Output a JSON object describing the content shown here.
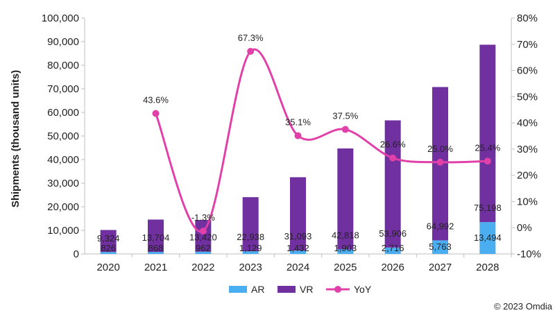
{
  "chart_data": {
    "type": "bar",
    "subtype": "stacked bar with line on secondary axis",
    "categories": [
      "2020",
      "2021",
      "2022",
      "2023",
      "2024",
      "2025",
      "2026",
      "2027",
      "2028"
    ],
    "series": [
      {
        "name": "AR",
        "type": "bar",
        "axis": "left",
        "color": "#4AAEF0",
        "values": [
          826,
          868,
          962,
          1129,
          1432,
          1903,
          2716,
          5763,
          13494
        ],
        "labels": [
          "826",
          "868",
          "962",
          "1,129",
          "1,432",
          "1,903",
          "2,716",
          "5,763",
          "13,494"
        ]
      },
      {
        "name": "VR",
        "type": "bar",
        "axis": "left",
        "color": "#7030A0",
        "values": [
          9324,
          13704,
          13420,
          22938,
          31093,
          42818,
          53906,
          64992,
          75198
        ],
        "labels": [
          "9,324",
          "13,704",
          "13,420",
          "22,938",
          "31,093",
          "42,818",
          "53,906",
          "64,992",
          "75,198"
        ]
      },
      {
        "name": "YoY",
        "type": "line",
        "axis": "right",
        "color": "#E040A8",
        "values": [
          null,
          43.6,
          -1.3,
          67.3,
          35.1,
          37.5,
          26.6,
          25.0,
          25.4
        ],
        "labels": [
          "",
          "43.6%",
          "-1.3%",
          "67.3%",
          "35.1%",
          "37.5%",
          "26.6%",
          "25.0%",
          "25.4%"
        ]
      }
    ],
    "ylabel": "Shipments (thousand units)",
    "ylim": [
      0,
      100000
    ],
    "y_ticks": [
      "0",
      "10,000",
      "20,000",
      "30,000",
      "40,000",
      "50,000",
      "60,000",
      "70,000",
      "80,000",
      "90,000",
      "100,000"
    ],
    "y2lim": [
      -10,
      80
    ],
    "y2_ticks": [
      "-10%",
      "0%",
      "10%",
      "20%",
      "30%",
      "40%",
      "50%",
      "60%",
      "70%",
      "80%"
    ],
    "grid": false,
    "legend": {
      "position": "bottom",
      "items": [
        "AR",
        "VR",
        "YoY"
      ]
    }
  },
  "footer": {
    "copyright": "© 2023 Omdia"
  }
}
